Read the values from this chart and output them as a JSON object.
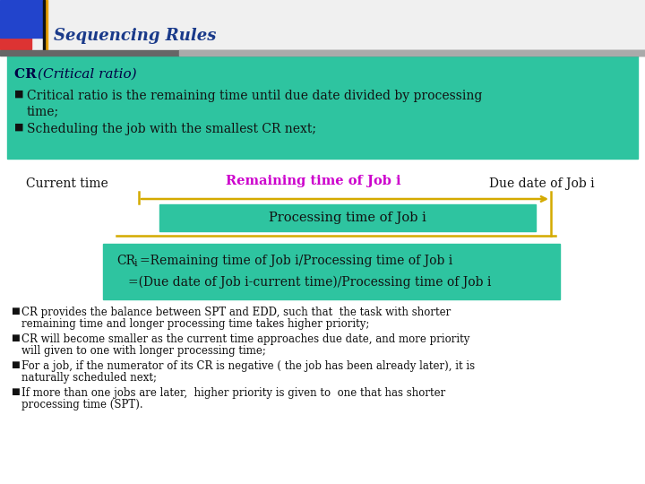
{
  "title": "Sequencing Rules",
  "title_color": "#1a3a8a",
  "bg_color": "#ffffff",
  "header_box_color": "#2ec4a0",
  "bullet1_line1": "Critical ratio is the remaining time until due date divided by processing",
  "bullet1_line2": "time;",
  "bullet2": "Scheduling the job with the smallest CR next;",
  "label_current": "Current time",
  "label_remaining": "Remaining time of Job i",
  "label_remaining_color": "#cc00cc",
  "label_due": "Due date of Job i",
  "label_processing": "Processing time of Job i",
  "formula_box_color": "#2ec4a0",
  "formula1_pre": "CR",
  "formula1_sub": "i",
  "formula1_post": "=Remaining time of Job i/Processing time of Job i",
  "formula2": "=(Due date of Job i-current time)/Processing time of Job i",
  "bullet_points": [
    [
      "CR provides the balance between SPT and EDD, such that  the task with shorter",
      "remaining time and longer processing time takes higher priority;"
    ],
    [
      "CR will become smaller as the current time approaches due date, and more priority",
      "will given to one with longer processing time;"
    ],
    [
      "For a job, if the numerator of its CR is negative ( the job has been already later), it is",
      "naturally scheduled next;"
    ],
    [
      "If more than one jobs are later,  higher priority is given to  one that has shorter",
      "processing time (SPT)."
    ]
  ],
  "arrow_color": "#d4aa00",
  "line_color": "#d4aa00",
  "processing_box_color": "#2ec4a0",
  "deco_blue": "#2244cc",
  "deco_red": "#dd3333",
  "deco_orange": "#e8a000",
  "title_bar_bg": "#f0f0f0",
  "dark_bar_color": "#666666"
}
